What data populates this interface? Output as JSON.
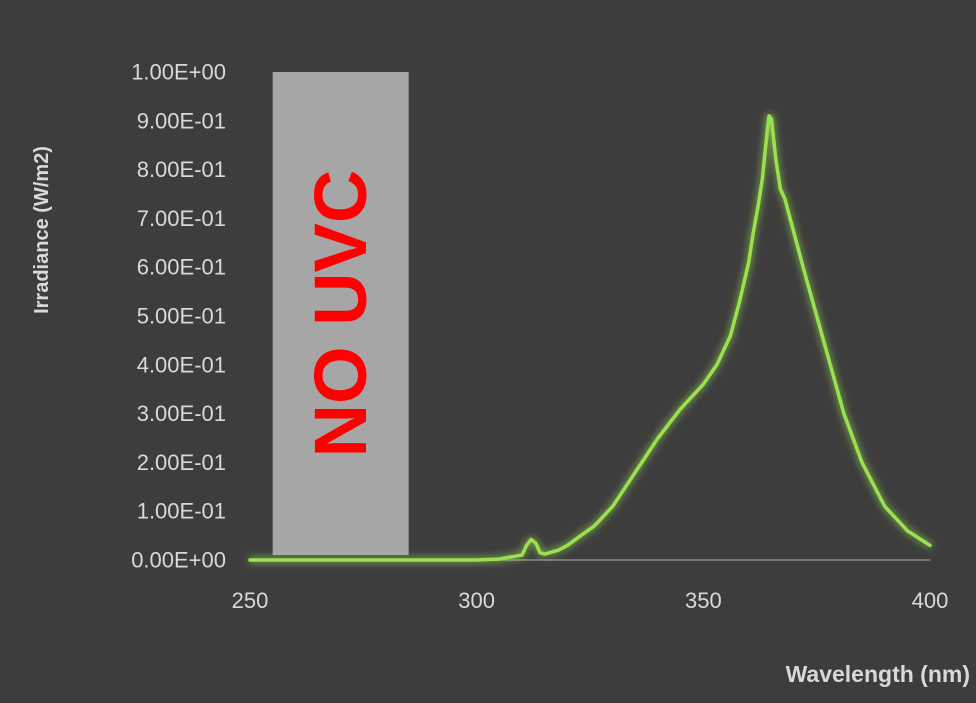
{
  "chart_data": {
    "type": "line",
    "xlabel": "Wavelength (nm)",
    "ylabel": "Irradiance (W/m2)",
    "xlim": [
      250,
      400
    ],
    "ylim": [
      0,
      1
    ],
    "x_ticks": [
      "250",
      "300",
      "350",
      "400"
    ],
    "y_ticks": [
      "0.00E+00",
      "1.00E-01",
      "2.00E-01",
      "3.00E-01",
      "4.00E-01",
      "5.00E-01",
      "6.00E-01",
      "7.00E-01",
      "8.00E-01",
      "9.00E-01",
      "1.00E+00"
    ],
    "grid": false,
    "legend": "none",
    "line_color": "#9be04f",
    "background_color": "#3d3d3d",
    "series": [
      {
        "x": [
          250,
          280,
          300,
          305,
          310,
          311,
          312,
          313,
          314,
          315,
          318,
          320,
          323,
          326,
          330,
          335,
          340,
          345,
          350,
          353,
          356,
          358,
          360,
          361,
          362,
          363,
          364,
          364.5,
          365,
          366,
          367,
          368,
          370,
          372,
          375,
          378,
          381,
          385,
          390,
          395,
          400
        ],
        "y": [
          0,
          0,
          0,
          0.002,
          0.01,
          0.03,
          0.042,
          0.035,
          0.015,
          0.012,
          0.02,
          0.03,
          0.05,
          0.07,
          0.11,
          0.18,
          0.25,
          0.31,
          0.36,
          0.4,
          0.46,
          0.53,
          0.61,
          0.67,
          0.72,
          0.78,
          0.87,
          0.91,
          0.905,
          0.82,
          0.76,
          0.74,
          0.67,
          0.6,
          0.5,
          0.4,
          0.3,
          0.2,
          0.11,
          0.06,
          0.03
        ]
      }
    ],
    "annotations": [
      {
        "type": "shaded_band",
        "x_range": [
          255,
          285
        ],
        "y_range": [
          0.01,
          1.0
        ],
        "color": "#a6a6a6",
        "text": "NO UVC",
        "text_color": "#ff0000"
      }
    ]
  }
}
